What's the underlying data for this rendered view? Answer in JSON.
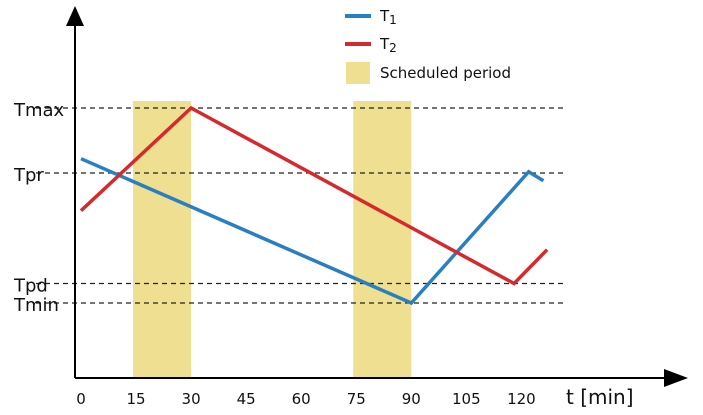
{
  "chart_data": {
    "type": "line",
    "x": [
      0,
      15,
      30,
      45,
      60,
      75,
      90,
      105,
      120
    ],
    "x_tick_labels": [
      "0",
      "15",
      "30",
      "45",
      "60",
      "75",
      "90",
      "105",
      "120"
    ],
    "xlabel": "t [min]",
    "xlim": [
      0,
      140
    ],
    "levels": [
      {
        "name": "Tmax",
        "value": 4
      },
      {
        "name": "Tpr",
        "value": 3
      },
      {
        "name": "Tpd",
        "value": 1.3
      },
      {
        "name": "Tmin",
        "value": 1
      }
    ],
    "ylim": [
      0,
      4
    ],
    "series": [
      {
        "name": "T1",
        "name_main": "T",
        "name_sub": "1",
        "color": "#2a7fc1",
        "points": [
          [
            0,
            3.22
          ],
          [
            90,
            1.0
          ],
          [
            122,
            3.02
          ],
          [
            126,
            2.88
          ]
        ]
      },
      {
        "name": "T2",
        "name_main": "T",
        "name_sub": "2",
        "color": "#d6292d",
        "points": [
          [
            0,
            2.42
          ],
          [
            30,
            4.0
          ],
          [
            118,
            1.3
          ],
          [
            127,
            1.82
          ]
        ]
      }
    ],
    "shaded_periods": [
      [
        15,
        30
      ],
      [
        75,
        90
      ]
    ],
    "shaded_label": "Scheduled period",
    "shaded_color": "#efdf90",
    "grid": false,
    "legend_position": "top-right"
  }
}
